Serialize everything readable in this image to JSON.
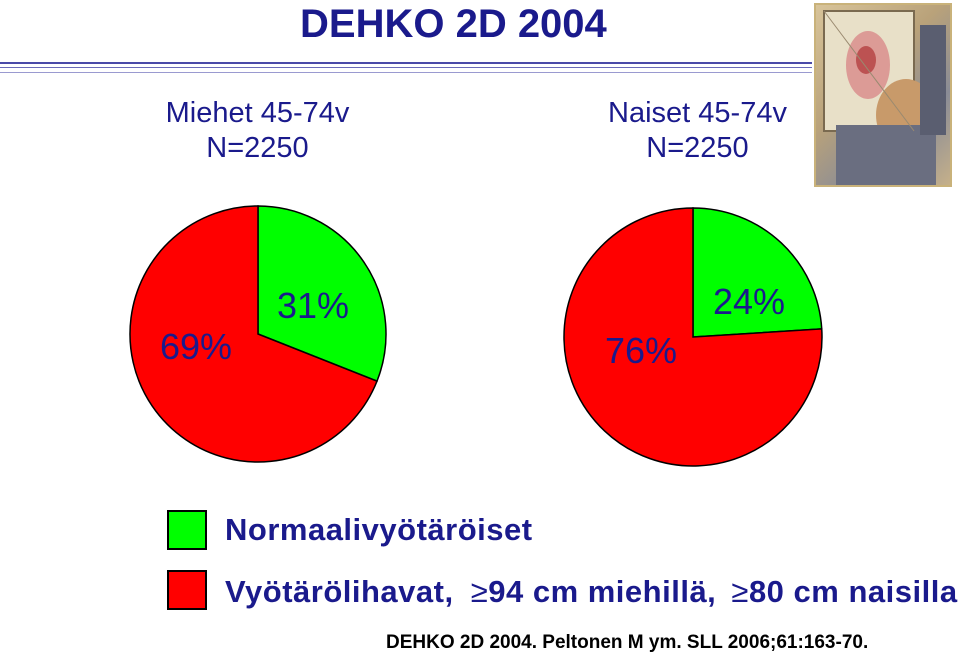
{
  "title": "DEHKO 2D 2004",
  "groups": [
    {
      "line1": "Miehet 45-74v",
      "line2": "N=2250"
    },
    {
      "line1": "Naiset 45-74v",
      "line2": "N=2250"
    }
  ],
  "legend": {
    "normal": "Normaalivyötäröiset",
    "obese_prefix": "Vyötärölihavat,",
    "obese_m": "94 cm miehillä,",
    "obese_f": "80 cm naisilla",
    "ge_symbol": "≥"
  },
  "citation": "DEHKO 2D 2004. Peltonen M ym. SLL 2006;61:163-70.",
  "colors": {
    "normal": "#00ff00",
    "obese": "#ff0000",
    "text": "#1a1a8c"
  },
  "chart_data": [
    {
      "type": "pie",
      "title": "Miehet 45-74v N=2250",
      "slices": [
        {
          "label": "31%",
          "value": 31,
          "color": "#00ff00"
        },
        {
          "label": "69%",
          "value": 69,
          "color": "#ff0000"
        }
      ]
    },
    {
      "type": "pie",
      "title": "Naiset 45-74v N=2250",
      "slices": [
        {
          "label": "24%",
          "value": 24,
          "color": "#00ff00"
        },
        {
          "label": "76%",
          "value": 76,
          "color": "#ff0000"
        }
      ]
    }
  ]
}
